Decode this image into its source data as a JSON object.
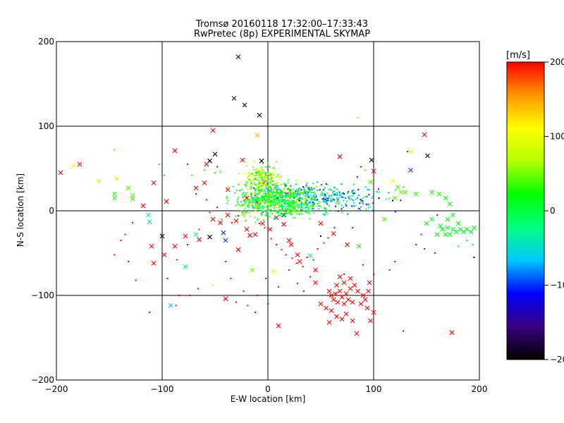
{
  "chart_data": {
    "type": "scatter",
    "title": "Tromsø 20160118 17:32:00–17:33:43",
    "subtitle": "RwPretec (8p) EXPERIMENTAL SKYMAP",
    "xlabel": "E-W location [km]",
    "ylabel": "N-S location [km]",
    "xlim": [
      -200,
      200
    ],
    "ylim": [
      -200,
      200
    ],
    "xticks": [
      -200,
      -100,
      0,
      100,
      200
    ],
    "yticks": [
      -200,
      -100,
      0,
      100,
      200
    ],
    "xtick_labels": [
      "−200",
      "−100",
      "0",
      "100",
      "200"
    ],
    "ytick_labels": [
      "−200",
      "−100",
      "0",
      "100",
      "200"
    ],
    "grid": true,
    "colorbar": {
      "unit": "[m/s]",
      "range": [
        -200,
        200
      ],
      "ticks": [
        200,
        100,
        0,
        -100,
        -200
      ],
      "tick_labels": [
        "200",
        "100",
        "0",
        "−100",
        "−200"
      ],
      "colors": [
        "#000000",
        "#3a0080",
        "#0000ff",
        "#00c8ff",
        "#00ff80",
        "#00ff00",
        "#b4ff00",
        "#ffff00",
        "#ff9600",
        "#ff0000"
      ]
    },
    "series": [
      {
        "name": "large-markers",
        "marker": "x",
        "points": [
          [
            -28,
            182,
            -190
          ],
          [
            -32,
            133,
            -180
          ],
          [
            -22,
            125,
            -185
          ],
          [
            -8,
            113,
            -190
          ],
          [
            -52,
            95,
            200
          ],
          [
            -10,
            89,
            140
          ],
          [
            -88,
            71,
            200
          ],
          [
            -118,
            6,
            200
          ],
          [
            -178,
            55,
            200
          ],
          [
            -196,
            45,
            200
          ],
          [
            -184,
            53,
            110
          ],
          [
            -160,
            35,
            80
          ],
          [
            -143,
            38,
            90
          ],
          [
            -145,
            20,
            30
          ],
          [
            -145,
            15,
            30
          ],
          [
            -132,
            27,
            40
          ],
          [
            -128,
            18,
            40
          ],
          [
            -128,
            14,
            40
          ],
          [
            -108,
            33,
            200
          ],
          [
            -96,
            11,
            200
          ],
          [
            -110,
            -42,
            200
          ],
          [
            -100,
            -30,
            -200
          ],
          [
            -113,
            -5,
            -40
          ],
          [
            -112,
            -13,
            -50
          ],
          [
            -92,
            -112,
            -60
          ],
          [
            -78,
            -66,
            -40
          ],
          [
            -68,
            27,
            200
          ],
          [
            -68,
            -28,
            -30
          ],
          [
            -55,
            59,
            -200
          ],
          [
            -50,
            67,
            -200
          ],
          [
            -55,
            -31,
            -200
          ],
          [
            -42,
            -26,
            -100
          ],
          [
            -40,
            -35,
            -100
          ],
          [
            -28,
            -46,
            200
          ],
          [
            -40,
            -104,
            200
          ],
          [
            -10,
            10,
            200
          ],
          [
            -17,
            -29,
            200
          ],
          [
            -6,
            59,
            -200
          ],
          [
            15,
            -5,
            -200
          ],
          [
            10,
            -136,
            200
          ],
          [
            20,
            -35,
            200
          ],
          [
            5,
            -72,
            100
          ],
          [
            -4,
            33,
            200
          ],
          [
            18,
            20,
            200
          ],
          [
            -20,
            15,
            200
          ],
          [
            40,
            -53,
            -30
          ],
          [
            50,
            -15,
            200
          ],
          [
            55,
            -2,
            -20
          ],
          [
            62,
            -27,
            200
          ],
          [
            68,
            64,
            200
          ],
          [
            75,
            -40,
            200
          ],
          [
            86,
            -42,
            30
          ],
          [
            97,
            34,
            40
          ],
          [
            97,
            -130,
            200
          ],
          [
            84,
            -145,
            200
          ],
          [
            98,
            60,
            -200
          ],
          [
            100,
            47,
            200
          ],
          [
            110,
            -10,
            40
          ],
          [
            118,
            35,
            100
          ],
          [
            135,
            70,
            100
          ],
          [
            135,
            48,
            -100
          ],
          [
            148,
            90,
            200
          ],
          [
            151,
            65,
            -200
          ],
          [
            174,
            -144,
            200
          ],
          [
            123,
            28,
            40
          ],
          [
            130,
            22,
            40
          ],
          [
            165,
            -22,
            20
          ],
          [
            168,
            -28,
            20
          ],
          [
            170,
            -20,
            10
          ],
          [
            172,
            -28,
            20
          ],
          [
            175,
            -22,
            10
          ],
          [
            178,
            -25,
            10
          ],
          [
            182,
            -22,
            20
          ],
          [
            185,
            -25,
            10
          ],
          [
            188,
            -22,
            20
          ],
          [
            192,
            -25,
            10
          ],
          [
            195,
            -20,
            20
          ],
          [
            150,
            -15,
            20
          ],
          [
            155,
            -10,
            10
          ],
          [
            160,
            -28,
            20
          ],
          [
            163,
            -18,
            10
          ],
          [
            170,
            -10,
            20
          ],
          [
            175,
            -5,
            10
          ],
          [
            180,
            -15,
            20
          ],
          [
            120,
            15,
            40
          ],
          [
            126,
            22,
            50
          ],
          [
            140,
            20,
            30
          ],
          [
            155,
            22,
            30
          ],
          [
            162,
            20,
            30
          ],
          [
            168,
            15,
            20
          ],
          [
            172,
            8,
            10
          ],
          [
            -65,
            -34,
            200
          ],
          [
            -60,
            33,
            200
          ],
          [
            -58,
            55,
            200
          ],
          [
            -38,
            25,
            200
          ],
          [
            -24,
            60,
            200
          ],
          [
            -15,
            -70,
            50
          ],
          [
            30,
            -60,
            200
          ],
          [
            45,
            -70,
            200
          ],
          [
            45,
            -85,
            200
          ],
          [
            50,
            -110,
            200
          ],
          [
            55,
            -115,
            200
          ],
          [
            58,
            -95,
            200
          ],
          [
            60,
            -100,
            200
          ],
          [
            62,
            -105,
            200
          ],
          [
            64,
            -98,
            200
          ],
          [
            66,
            -108,
            200
          ],
          [
            68,
            -95,
            200
          ],
          [
            70,
            -102,
            200
          ],
          [
            72,
            -110,
            200
          ],
          [
            74,
            -98,
            200
          ],
          [
            76,
            -105,
            200
          ],
          [
            78,
            -92,
            200
          ],
          [
            80,
            -108,
            200
          ],
          [
            65,
            -88,
            200
          ],
          [
            68,
            -78,
            200
          ],
          [
            72,
            -85,
            200
          ],
          [
            78,
            -80,
            200
          ],
          [
            82,
            -88,
            200
          ],
          [
            85,
            -95,
            200
          ],
          [
            88,
            -110,
            200
          ],
          [
            90,
            -100,
            200
          ],
          [
            92,
            -105,
            200
          ],
          [
            94,
            -115,
            200
          ],
          [
            95,
            -95,
            200
          ],
          [
            96,
            -85,
            200
          ],
          [
            100,
            -120,
            200
          ],
          [
            60,
            -118,
            200
          ],
          [
            65,
            -125,
            200
          ],
          [
            70,
            -128,
            200
          ],
          [
            74,
            -122,
            200
          ],
          [
            80,
            -130,
            200
          ],
          [
            58,
            -132,
            200
          ],
          [
            -30,
            -12,
            200
          ],
          [
            -38,
            -5,
            200
          ],
          [
            -45,
            -14,
            200
          ],
          [
            -52,
            -10,
            200
          ],
          [
            -20,
            -22,
            200
          ],
          [
            -12,
            -28,
            200
          ],
          [
            -5,
            -15,
            200
          ],
          [
            2,
            -22,
            200
          ],
          [
            8,
            -8,
            200
          ],
          [
            15,
            -16,
            200
          ],
          [
            22,
            -40,
            200
          ],
          [
            28,
            -52,
            200
          ],
          [
            -78,
            -30,
            200
          ],
          [
            -88,
            -42,
            200
          ],
          [
            -98,
            -52,
            200
          ],
          [
            -108,
            -62,
            200
          ]
        ]
      },
      {
        "name": "small-markers",
        "marker": "dot",
        "points": [
          [
            -128,
            -14,
            200
          ],
          [
            -135,
            -28,
            200
          ],
          [
            -139,
            -35,
            200
          ],
          [
            -145,
            -52,
            200
          ],
          [
            -132,
            -60,
            200
          ],
          [
            -125,
            -82,
            200
          ],
          [
            -112,
            -120,
            200
          ],
          [
            -87,
            -112,
            200
          ],
          [
            -74,
            -100,
            200
          ],
          [
            -66,
            -92,
            200
          ],
          [
            -52,
            -88,
            80
          ],
          [
            -23,
            -95,
            200
          ],
          [
            -30,
            -108,
            200
          ],
          [
            -19,
            -112,
            200
          ],
          [
            -12,
            -120,
            200
          ],
          [
            -2,
            -80,
            200
          ],
          [
            20,
            -70,
            200
          ],
          [
            28,
            -86,
            200
          ],
          [
            34,
            -95,
            200
          ],
          [
            40,
            -78,
            200
          ],
          [
            72,
            -75,
            200
          ],
          [
            90,
            -64,
            200
          ],
          [
            100,
            -75,
            200
          ],
          [
            115,
            -70,
            200
          ],
          [
            120,
            -60,
            200
          ],
          [
            128,
            -142,
            200
          ],
          [
            145,
            -28,
            200
          ],
          [
            158,
            -50,
            200
          ],
          [
            140,
            -40,
            200
          ],
          [
            148,
            -45,
            200
          ],
          [
            160,
            -5,
            200
          ],
          [
            132,
            70,
            200
          ],
          [
            85,
            110,
            50
          ],
          [
            105,
            15,
            -200
          ],
          [
            118,
            12,
            -200
          ],
          [
            92,
            48,
            40
          ],
          [
            88,
            52,
            -100
          ],
          [
            128,
            28,
            30
          ],
          [
            195,
            -55,
            -200
          ],
          [
            194,
            -40,
            30
          ],
          [
            188,
            -35,
            10
          ],
          [
            180,
            -42,
            20
          ],
          [
            -145,
            72,
            30
          ],
          [
            -103,
            55,
            20
          ],
          [
            -98,
            42,
            20
          ],
          [
            -76,
            55,
            200
          ],
          [
            -60,
            48,
            30
          ],
          [
            -50,
            45,
            20
          ],
          [
            -48,
            52,
            200
          ],
          [
            -45,
            46,
            30
          ],
          [
            -72,
            42,
            30
          ],
          [
            -68,
            20,
            200
          ],
          [
            -58,
            13,
            200
          ],
          [
            -55,
            -2,
            200
          ],
          [
            -48,
            4,
            200
          ],
          [
            -44,
            -10,
            30
          ],
          [
            -34,
            -14,
            200
          ],
          [
            -28,
            -6,
            200
          ],
          [
            -24,
            -2,
            200
          ],
          [
            -20,
            16,
            200
          ],
          [
            -16,
            25,
            100
          ],
          [
            -12,
            18,
            200
          ],
          [
            -8,
            -15,
            200
          ],
          [
            -5,
            -2,
            200
          ],
          [
            -3,
            -20,
            200
          ],
          [
            3,
            -33,
            200
          ],
          [
            8,
            -40,
            200
          ],
          [
            13,
            -46,
            200
          ],
          [
            17,
            -52,
            200
          ],
          [
            23,
            -56,
            200
          ],
          [
            27,
            -62,
            200
          ],
          [
            33,
            -66,
            200
          ],
          [
            37,
            -55,
            200
          ],
          [
            43,
            -58,
            200
          ],
          [
            47,
            -45,
            200
          ],
          [
            53,
            -38,
            200
          ],
          [
            57,
            -32,
            200
          ],
          [
            63,
            -20,
            200
          ],
          [
            -84,
            -100,
            200
          ],
          [
            -95,
            -80,
            200
          ],
          [
            -86,
            -58,
            200
          ],
          [
            -76,
            -40,
            200
          ],
          [
            -65,
            -22,
            200
          ],
          [
            -40,
            -60,
            200
          ],
          [
            -35,
            -80,
            200
          ],
          [
            -10,
            -100,
            200
          ],
          [
            0,
            -110,
            200
          ],
          [
            10,
            -90,
            200
          ],
          [
            50,
            -30,
            -200
          ],
          [
            80,
            -20,
            200
          ]
        ]
      }
    ]
  }
}
